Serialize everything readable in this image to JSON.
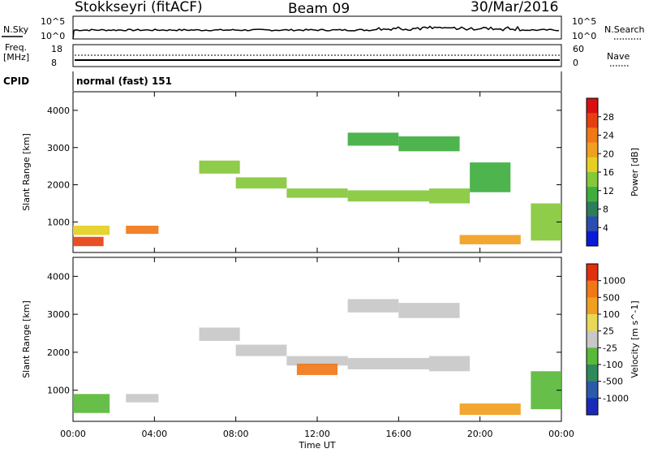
{
  "header": {
    "station": "Stokkseyri (fitACF)",
    "beam": "Beam 09",
    "date": "30/Mar/2016"
  },
  "sky_panel": {
    "left_label": "N.Sky",
    "right_label": "N.Search",
    "left_ticks": [
      "10^5",
      "10^0"
    ],
    "right_ticks": [
      "10^5",
      "10^0"
    ]
  },
  "freq_panel": {
    "left_label_top": "Freq.",
    "left_label_unit": "[MHz]",
    "left_ticks": [
      "18",
      "8"
    ],
    "right_label": "Nave",
    "right_ticks": [
      "60",
      "0"
    ]
  },
  "cpid_panel": {
    "label": "CPID",
    "value": "normal (fast) 151"
  },
  "chart_data": [
    {
      "type": "heatmap",
      "name": "power",
      "ylabel": "Slant Range [km]",
      "yticks": [
        "4000",
        "3000",
        "2000",
        "1000"
      ],
      "ylim": [
        180,
        4500
      ],
      "xlim": [
        0,
        24
      ],
      "colorbar": {
        "title": "Power [dB]",
        "labels": [
          "28",
          "24",
          "20",
          "16",
          "12",
          "8",
          "4"
        ],
        "colors": [
          "#0a1ad8",
          "#2a4db0",
          "#2e7d5a",
          "#3fae3f",
          "#86c83a",
          "#e3d023",
          "#f0a020",
          "#f07818",
          "#e64010",
          "#d81010"
        ]
      },
      "bands": [
        {
          "t0": 0.0,
          "t1": 1.8,
          "r0": 650,
          "r1": 900,
          "level": 5
        },
        {
          "t0": 0.0,
          "t1": 1.5,
          "r0": 350,
          "r1": 600,
          "level": 8
        },
        {
          "t0": 2.6,
          "t1": 4.2,
          "r0": 680,
          "r1": 900,
          "level": 7
        },
        {
          "t0": 6.2,
          "t1": 8.2,
          "r0": 2300,
          "r1": 2650,
          "level": 4
        },
        {
          "t0": 8.0,
          "t1": 10.5,
          "r0": 1900,
          "r1": 2200,
          "level": 4
        },
        {
          "t0": 10.5,
          "t1": 13.5,
          "r0": 1650,
          "r1": 1900,
          "level": 4
        },
        {
          "t0": 13.5,
          "t1": 17.5,
          "r0": 1550,
          "r1": 1850,
          "level": 4
        },
        {
          "t0": 17.5,
          "t1": 19.5,
          "r0": 1500,
          "r1": 1900,
          "level": 4
        },
        {
          "t0": 19.5,
          "t1": 21.5,
          "r0": 1800,
          "r1": 2600,
          "level": 3
        },
        {
          "t0": 13.5,
          "t1": 16.0,
          "r0": 3050,
          "r1": 3400,
          "level": 3
        },
        {
          "t0": 16.0,
          "t1": 19.0,
          "r0": 2900,
          "r1": 3300,
          "level": 3
        },
        {
          "t0": 19.0,
          "t1": 22.0,
          "r0": 400,
          "r1": 650,
          "level": 6
        },
        {
          "t0": 22.5,
          "t1": 24.0,
          "r0": 500,
          "r1": 1500,
          "level": 4
        }
      ]
    },
    {
      "type": "heatmap",
      "name": "velocity",
      "ylabel": "Slant Range [km]",
      "yticks": [
        "4000",
        "3000",
        "2000",
        "1000"
      ],
      "ylim": [
        180,
        4500
      ],
      "xlim": [
        0,
        24
      ],
      "colorbar": {
        "title": "Velocity [m s^-1]",
        "labels": [
          "1000",
          "500",
          "100",
          "25",
          "-25",
          "-100",
          "-500",
          "-1000"
        ],
        "colors": [
          "#1a2ab8",
          "#2a5aa8",
          "#2e8a5a",
          "#5ab83a",
          "#c8c8c8",
          "#e8d858",
          "#f0a020",
          "#f07818",
          "#e03010"
        ]
      },
      "bands": [
        {
          "t0": 0.0,
          "t1": 1.8,
          "r0": 400,
          "r1": 900,
          "level": 3
        },
        {
          "t0": 2.6,
          "t1": 4.2,
          "r0": 680,
          "r1": 900,
          "level": 4
        },
        {
          "t0": 6.2,
          "t1": 8.2,
          "r0": 2300,
          "r1": 2650,
          "level": 4
        },
        {
          "t0": 8.0,
          "t1": 10.5,
          "r0": 1900,
          "r1": 2200,
          "level": 4
        },
        {
          "t0": 10.5,
          "t1": 13.5,
          "r0": 1650,
          "r1": 1900,
          "level": 4
        },
        {
          "t0": 13.5,
          "t1": 17.5,
          "r0": 1550,
          "r1": 1850,
          "level": 4
        },
        {
          "t0": 17.5,
          "t1": 19.5,
          "r0": 1500,
          "r1": 1900,
          "level": 4
        },
        {
          "t0": 13.5,
          "t1": 16.0,
          "r0": 3050,
          "r1": 3400,
          "level": 4
        },
        {
          "t0": 16.0,
          "t1": 19.0,
          "r0": 2900,
          "r1": 3300,
          "level": 4
        },
        {
          "t0": 11.0,
          "t1": 13.0,
          "r0": 1400,
          "r1": 1700,
          "level": 7
        },
        {
          "t0": 19.0,
          "t1": 22.0,
          "r0": 350,
          "r1": 650,
          "level": 6
        },
        {
          "t0": 22.5,
          "t1": 24.0,
          "r0": 500,
          "r1": 1500,
          "level": 3
        }
      ]
    }
  ],
  "time_axis": {
    "labels": [
      "00:00",
      "04:00",
      "08:00",
      "12:00",
      "16:00",
      "20:00",
      "00:00"
    ],
    "title": "Time UT"
  }
}
